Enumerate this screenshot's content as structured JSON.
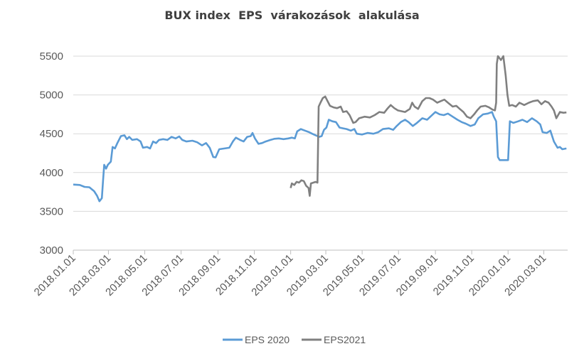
{
  "chart_data": {
    "type": "line",
    "title": "BUX index  EPS  várakozások  alakulása",
    "xlabel": "",
    "ylabel": "",
    "x_range": [
      "2018-01-01",
      "2020-04-10"
    ],
    "ylim": [
      3000,
      5500
    ],
    "y_ticks": [
      3000,
      3500,
      4000,
      4500,
      5000,
      5500
    ],
    "x_ticks": [
      {
        "date": "2018-01-01",
        "label": "2018.01.01"
      },
      {
        "date": "2018-03-01",
        "label": "2018.03.01"
      },
      {
        "date": "2018-05-01",
        "label": "2018.05.01"
      },
      {
        "date": "2018-07-01",
        "label": "2018.07.01"
      },
      {
        "date": "2018-09-01",
        "label": "2018.09.01"
      },
      {
        "date": "2018-11-01",
        "label": "2018.11.01"
      },
      {
        "date": "2019-01-01",
        "label": "2019.01.01"
      },
      {
        "date": "2019-03-01",
        "label": "2019.03.01"
      },
      {
        "date": "2019-05-01",
        "label": "2019.05.01"
      },
      {
        "date": "2019-07-01",
        "label": "2019.07.01"
      },
      {
        "date": "2019-09-01",
        "label": "2019.09.01"
      },
      {
        "date": "2019-11-01",
        "label": "2019.11.01"
      },
      {
        "date": "2020-01-01",
        "label": "2020.01.01"
      },
      {
        "date": "2020-03-01",
        "label": "2020.03.01"
      }
    ],
    "grid": "horizontal",
    "legend_position": "bottom",
    "series": [
      {
        "name": "EPS 2020",
        "color": "#5b9bd5",
        "points": [
          [
            "2018-01-01",
            3845
          ],
          [
            "2018-01-12",
            3840
          ],
          [
            "2018-01-20",
            3815
          ],
          [
            "2018-01-28",
            3810
          ],
          [
            "2018-02-05",
            3760
          ],
          [
            "2018-02-10",
            3700
          ],
          [
            "2018-02-14",
            3630
          ],
          [
            "2018-02-18",
            3670
          ],
          [
            "2018-02-20",
            3900
          ],
          [
            "2018-02-22",
            4100
          ],
          [
            "2018-02-25",
            4050
          ],
          [
            "2018-02-28",
            4100
          ],
          [
            "2018-03-05",
            4140
          ],
          [
            "2018-03-08",
            4330
          ],
          [
            "2018-03-12",
            4310
          ],
          [
            "2018-03-16",
            4380
          ],
          [
            "2018-03-22",
            4470
          ],
          [
            "2018-03-28",
            4480
          ],
          [
            "2018-04-01",
            4430
          ],
          [
            "2018-04-05",
            4460
          ],
          [
            "2018-04-10",
            4420
          ],
          [
            "2018-04-18",
            4430
          ],
          [
            "2018-04-24",
            4400
          ],
          [
            "2018-04-28",
            4320
          ],
          [
            "2018-05-05",
            4330
          ],
          [
            "2018-05-10",
            4310
          ],
          [
            "2018-05-15",
            4400
          ],
          [
            "2018-05-20",
            4380
          ],
          [
            "2018-05-25",
            4420
          ],
          [
            "2018-06-01",
            4430
          ],
          [
            "2018-06-08",
            4420
          ],
          [
            "2018-06-15",
            4460
          ],
          [
            "2018-06-22",
            4440
          ],
          [
            "2018-06-28",
            4465
          ],
          [
            "2018-07-03",
            4420
          ],
          [
            "2018-07-10",
            4400
          ],
          [
            "2018-07-20",
            4410
          ],
          [
            "2018-07-28",
            4390
          ],
          [
            "2018-08-05",
            4350
          ],
          [
            "2018-08-12",
            4380
          ],
          [
            "2018-08-18",
            4320
          ],
          [
            "2018-08-24",
            4200
          ],
          [
            "2018-08-28",
            4195
          ],
          [
            "2018-09-03",
            4300
          ],
          [
            "2018-09-12",
            4310
          ],
          [
            "2018-09-20",
            4320
          ],
          [
            "2018-09-26",
            4400
          ],
          [
            "2018-10-01",
            4450
          ],
          [
            "2018-10-08",
            4420
          ],
          [
            "2018-10-14",
            4400
          ],
          [
            "2018-10-20",
            4460
          ],
          [
            "2018-10-26",
            4470
          ],
          [
            "2018-10-29",
            4510
          ],
          [
            "2018-11-02",
            4440
          ],
          [
            "2018-11-08",
            4370
          ],
          [
            "2018-11-14",
            4380
          ],
          [
            "2018-11-20",
            4400
          ],
          [
            "2018-11-28",
            4420
          ],
          [
            "2018-12-05",
            4435
          ],
          [
            "2018-12-12",
            4440
          ],
          [
            "2018-12-20",
            4430
          ],
          [
            "2018-12-28",
            4440
          ],
          [
            "2019-01-03",
            4450
          ],
          [
            "2019-01-08",
            4440
          ],
          [
            "2019-01-12",
            4530
          ],
          [
            "2019-01-18",
            4560
          ],
          [
            "2019-01-25",
            4540
          ],
          [
            "2019-02-01",
            4520
          ],
          [
            "2019-02-06",
            4500
          ],
          [
            "2019-02-12",
            4480
          ],
          [
            "2019-02-18",
            4460
          ],
          [
            "2019-02-22",
            4470
          ],
          [
            "2019-02-26",
            4550
          ],
          [
            "2019-03-02",
            4580
          ],
          [
            "2019-03-06",
            4680
          ],
          [
            "2019-03-12",
            4660
          ],
          [
            "2019-03-18",
            4650
          ],
          [
            "2019-03-24",
            4580
          ],
          [
            "2019-03-30",
            4570
          ],
          [
            "2019-04-05",
            4560
          ],
          [
            "2019-04-12",
            4540
          ],
          [
            "2019-04-18",
            4560
          ],
          [
            "2019-04-22",
            4500
          ],
          [
            "2019-05-01",
            4490
          ],
          [
            "2019-05-10",
            4510
          ],
          [
            "2019-05-20",
            4500
          ],
          [
            "2019-05-28",
            4520
          ],
          [
            "2019-06-05",
            4560
          ],
          [
            "2019-06-15",
            4570
          ],
          [
            "2019-06-22",
            4550
          ],
          [
            "2019-06-28",
            4600
          ],
          [
            "2019-07-05",
            4650
          ],
          [
            "2019-07-12",
            4680
          ],
          [
            "2019-07-18",
            4650
          ],
          [
            "2019-07-25",
            4600
          ],
          [
            "2019-08-01",
            4640
          ],
          [
            "2019-08-10",
            4700
          ],
          [
            "2019-08-18",
            4680
          ],
          [
            "2019-08-25",
            4730
          ],
          [
            "2019-09-01",
            4780
          ],
          [
            "2019-09-08",
            4750
          ],
          [
            "2019-09-15",
            4740
          ],
          [
            "2019-09-22",
            4760
          ],
          [
            "2019-09-30",
            4720
          ],
          [
            "2019-10-08",
            4680
          ],
          [
            "2019-10-15",
            4650
          ],
          [
            "2019-10-22",
            4630
          ],
          [
            "2019-10-30",
            4600
          ],
          [
            "2019-11-06",
            4620
          ],
          [
            "2019-11-12",
            4700
          ],
          [
            "2019-11-20",
            4750
          ],
          [
            "2019-11-28",
            4760
          ],
          [
            "2019-12-05",
            4780
          ],
          [
            "2019-12-08",
            4720
          ],
          [
            "2019-12-12",
            4660
          ],
          [
            "2019-12-15",
            4200
          ],
          [
            "2019-12-18",
            4160
          ],
          [
            "2019-12-28",
            4160
          ],
          [
            "2020-01-01",
            4160
          ],
          [
            "2020-01-04",
            4660
          ],
          [
            "2020-01-10",
            4640
          ],
          [
            "2020-01-18",
            4660
          ],
          [
            "2020-01-25",
            4680
          ],
          [
            "2020-02-02",
            4650
          ],
          [
            "2020-02-10",
            4700
          ],
          [
            "2020-02-18",
            4660
          ],
          [
            "2020-02-24",
            4620
          ],
          [
            "2020-02-28",
            4520
          ],
          [
            "2020-03-06",
            4510
          ],
          [
            "2020-03-12",
            4540
          ],
          [
            "2020-03-18",
            4400
          ],
          [
            "2020-03-24",
            4320
          ],
          [
            "2020-03-28",
            4330
          ],
          [
            "2020-04-01",
            4300
          ],
          [
            "2020-04-08",
            4310
          ]
        ]
      },
      {
        "name": "EPS2021",
        "color": "#808080",
        "points": [
          [
            "2019-01-01",
            3800
          ],
          [
            "2019-01-03",
            3860
          ],
          [
            "2019-01-07",
            3840
          ],
          [
            "2019-01-11",
            3880
          ],
          [
            "2019-01-15",
            3870
          ],
          [
            "2019-01-19",
            3900
          ],
          [
            "2019-01-23",
            3890
          ],
          [
            "2019-01-27",
            3830
          ],
          [
            "2019-01-31",
            3800
          ],
          [
            "2019-02-02",
            3700
          ],
          [
            "2019-02-04",
            3860
          ],
          [
            "2019-02-08",
            3870
          ],
          [
            "2019-02-12",
            3880
          ],
          [
            "2019-02-15",
            3870
          ],
          [
            "2019-02-17",
            4850
          ],
          [
            "2019-02-20",
            4900
          ],
          [
            "2019-02-24",
            4960
          ],
          [
            "2019-02-28",
            4980
          ],
          [
            "2019-03-04",
            4920
          ],
          [
            "2019-03-08",
            4860
          ],
          [
            "2019-03-14",
            4840
          ],
          [
            "2019-03-20",
            4830
          ],
          [
            "2019-03-26",
            4850
          ],
          [
            "2019-03-30",
            4780
          ],
          [
            "2019-04-05",
            4790
          ],
          [
            "2019-04-10",
            4740
          ],
          [
            "2019-04-16",
            4640
          ],
          [
            "2019-04-20",
            4650
          ],
          [
            "2019-04-26",
            4700
          ],
          [
            "2019-05-05",
            4720
          ],
          [
            "2019-05-14",
            4710
          ],
          [
            "2019-05-22",
            4740
          ],
          [
            "2019-05-30",
            4780
          ],
          [
            "2019-06-07",
            4770
          ],
          [
            "2019-06-12",
            4820
          ],
          [
            "2019-06-18",
            4870
          ],
          [
            "2019-06-24",
            4830
          ],
          [
            "2019-06-30",
            4800
          ],
          [
            "2019-07-06",
            4790
          ],
          [
            "2019-07-12",
            4780
          ],
          [
            "2019-07-20",
            4820
          ],
          [
            "2019-07-24",
            4900
          ],
          [
            "2019-07-28",
            4850
          ],
          [
            "2019-08-03",
            4820
          ],
          [
            "2019-08-10",
            4920
          ],
          [
            "2019-08-16",
            4960
          ],
          [
            "2019-08-22",
            4960
          ],
          [
            "2019-08-28",
            4940
          ],
          [
            "2019-09-04",
            4900
          ],
          [
            "2019-09-10",
            4920
          ],
          [
            "2019-09-16",
            4940
          ],
          [
            "2019-09-22",
            4900
          ],
          [
            "2019-09-30",
            4850
          ],
          [
            "2019-10-06",
            4860
          ],
          [
            "2019-10-12",
            4820
          ],
          [
            "2019-10-18",
            4780
          ],
          [
            "2019-10-24",
            4720
          ],
          [
            "2019-10-30",
            4700
          ],
          [
            "2019-11-05",
            4750
          ],
          [
            "2019-11-10",
            4800
          ],
          [
            "2019-11-16",
            4850
          ],
          [
            "2019-11-24",
            4860
          ],
          [
            "2019-11-30",
            4840
          ],
          [
            "2019-12-06",
            4810
          ],
          [
            "2019-12-10",
            4800
          ],
          [
            "2019-12-12",
            4900
          ],
          [
            "2019-12-13",
            5400
          ],
          [
            "2019-12-15",
            5500
          ],
          [
            "2019-12-20",
            5450
          ],
          [
            "2019-12-24",
            5500
          ],
          [
            "2019-12-28",
            5250
          ],
          [
            "2019-12-31",
            5000
          ],
          [
            "2020-01-03",
            4860
          ],
          [
            "2020-01-08",
            4870
          ],
          [
            "2020-01-14",
            4850
          ],
          [
            "2020-01-20",
            4900
          ],
          [
            "2020-01-28",
            4870
          ],
          [
            "2020-02-05",
            4900
          ],
          [
            "2020-02-12",
            4920
          ],
          [
            "2020-02-20",
            4930
          ],
          [
            "2020-02-26",
            4880
          ],
          [
            "2020-03-03",
            4920
          ],
          [
            "2020-03-09",
            4900
          ],
          [
            "2020-03-14",
            4850
          ],
          [
            "2020-03-18",
            4800
          ],
          [
            "2020-03-22",
            4700
          ],
          [
            "2020-03-28",
            4780
          ],
          [
            "2020-04-03",
            4770
          ],
          [
            "2020-04-08",
            4775
          ]
        ]
      }
    ]
  }
}
